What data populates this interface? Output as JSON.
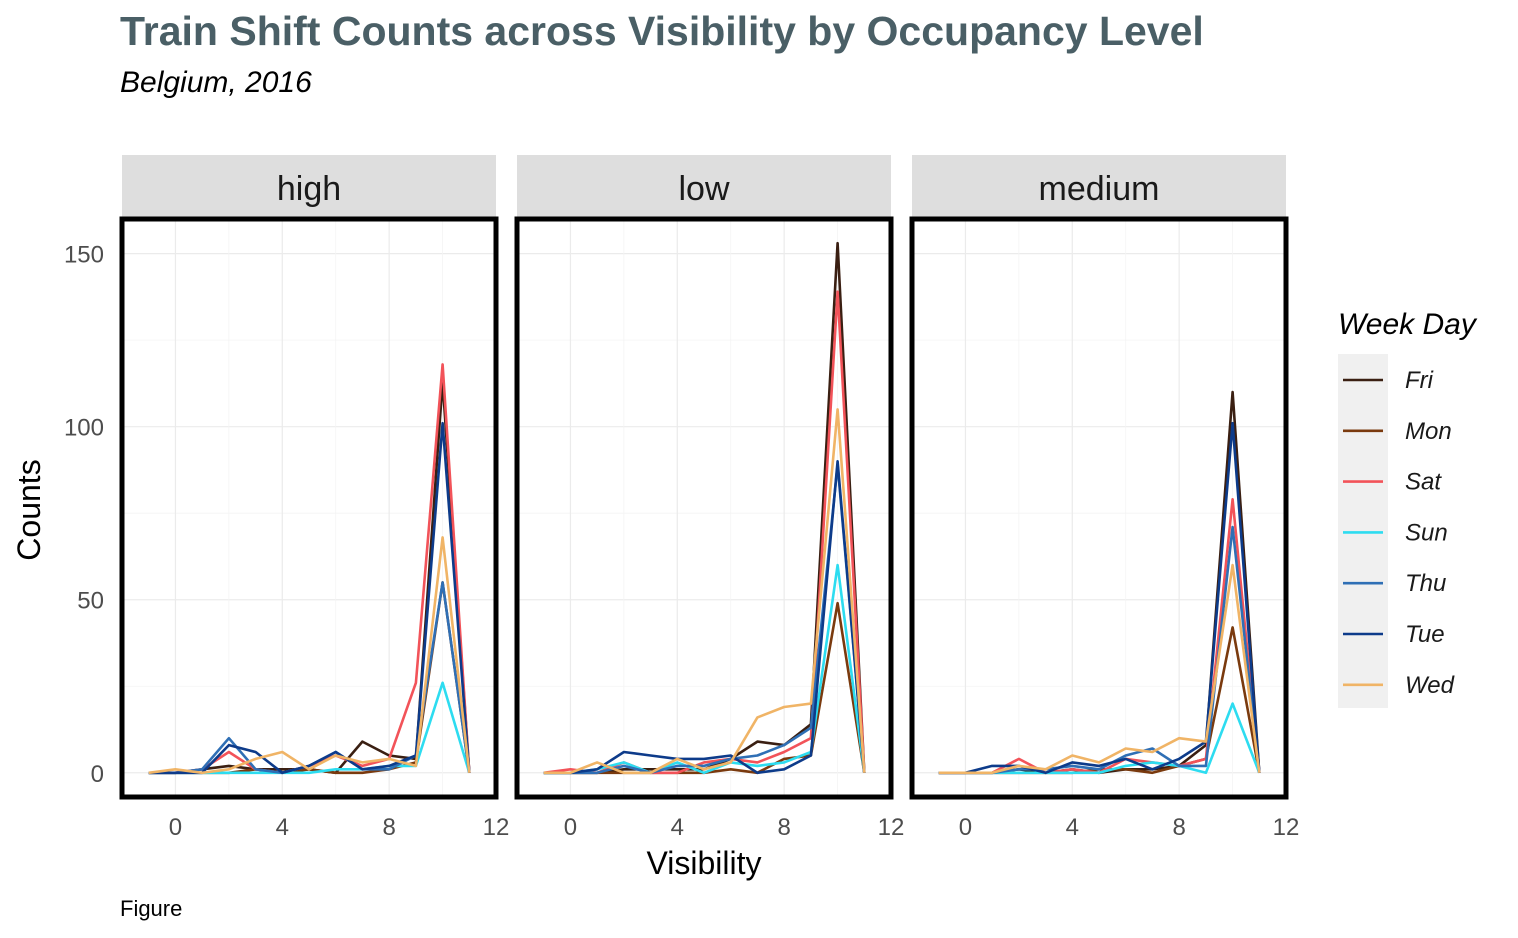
{
  "title": "Train Shift Counts across Visibility by Occupancy Level",
  "subtitle": "Belgium, 2016",
  "caption": "Figure",
  "chart_data": {
    "type": "line",
    "title": "Train Shift Counts across Visibility by Occupancy Level",
    "subtitle": "Belgium, 2016",
    "xlabel": "Visibility",
    "ylabel": "Counts",
    "xlim": [
      -2,
      12
    ],
    "ylim": [
      -7,
      160
    ],
    "x_ticks": [
      0,
      4,
      8,
      12
    ],
    "y_ticks": [
      0,
      50,
      100,
      150
    ],
    "grid": true,
    "legend": {
      "title": "Week Day",
      "position": "right"
    },
    "x": [
      -1,
      0,
      1,
      2,
      3,
      4,
      5,
      6,
      7,
      8,
      9,
      10,
      11
    ],
    "colors": {
      "Fri": "#3a1f12",
      "Mon": "#7a3a0e",
      "Sat": "#f25359",
      "Sun": "#2ddcf0",
      "Thu": "#2f6fb5",
      "Tue": "#0d3b8a",
      "Wed": "#f0b466"
    },
    "panels": [
      {
        "label": "high",
        "series": [
          {
            "name": "Fri",
            "values": [
              0,
              0,
              1,
              2,
              1,
              1,
              1,
              0,
              9,
              5,
              4,
              113,
              0
            ]
          },
          {
            "name": "Mon",
            "values": [
              0,
              0,
              0,
              0,
              1,
              0,
              1,
              0,
              0,
              1,
              3,
              55,
              0
            ]
          },
          {
            "name": "Sat",
            "values": [
              0,
              0,
              1,
              6,
              1,
              0,
              2,
              5,
              2,
              4,
              26,
              118,
              0
            ]
          },
          {
            "name": "Sun",
            "values": [
              0,
              0,
              0,
              0,
              0,
              0,
              0,
              1,
              1,
              2,
              2,
              26,
              0
            ]
          },
          {
            "name": "Thu",
            "values": [
              0,
              0,
              1,
              10,
              1,
              0,
              2,
              6,
              1,
              1,
              5,
              55,
              0
            ]
          },
          {
            "name": "Tue",
            "values": [
              0,
              0,
              0,
              8,
              6,
              0,
              2,
              6,
              1,
              2,
              5,
              101,
              0
            ]
          },
          {
            "name": "Wed",
            "values": [
              0,
              1,
              0,
              1,
              4,
              6,
              1,
              5,
              3,
              4,
              2,
              68,
              0
            ]
          }
        ]
      },
      {
        "label": "low",
        "series": [
          {
            "name": "Fri",
            "values": [
              0,
              0,
              0,
              1,
              1,
              1,
              1,
              4,
              9,
              8,
              14,
              153,
              0
            ]
          },
          {
            "name": "Mon",
            "values": [
              0,
              0,
              0,
              0,
              0,
              0,
              0,
              1,
              0,
              4,
              5,
              49,
              0
            ]
          },
          {
            "name": "Sat",
            "values": [
              0,
              1,
              0,
              3,
              0,
              0,
              3,
              4,
              3,
              6,
              10,
              139,
              0
            ]
          },
          {
            "name": "Sun",
            "values": [
              0,
              0,
              1,
              3,
              0,
              3,
              0,
              3,
              2,
              3,
              6,
              60,
              0
            ]
          },
          {
            "name": "Thu",
            "values": [
              0,
              0,
              0,
              2,
              0,
              2,
              2,
              4,
              5,
              8,
              13,
              89,
              0
            ]
          },
          {
            "name": "Tue",
            "values": [
              0,
              0,
              1,
              6,
              5,
              4,
              4,
              5,
              0,
              1,
              5,
              90,
              0
            ]
          },
          {
            "name": "Wed",
            "values": [
              0,
              0,
              3,
              0,
              0,
              4,
              1,
              3,
              16,
              19,
              20,
              105,
              0
            ]
          }
        ]
      },
      {
        "label": "medium",
        "series": [
          {
            "name": "Fri",
            "values": [
              0,
              0,
              0,
              1,
              0,
              1,
              0,
              1,
              1,
              2,
              8,
              110,
              0
            ]
          },
          {
            "name": "Mon",
            "values": [
              0,
              0,
              0,
              0,
              0,
              0,
              1,
              1,
              0,
              2,
              4,
              42,
              0
            ]
          },
          {
            "name": "Sat",
            "values": [
              0,
              0,
              0,
              4,
              0,
              1,
              0,
              4,
              3,
              2,
              4,
              79,
              0
            ]
          },
          {
            "name": "Sun",
            "values": [
              0,
              0,
              0,
              0,
              0,
              0,
              0,
              2,
              3,
              2,
              0,
              20,
              0
            ]
          },
          {
            "name": "Thu",
            "values": [
              0,
              0,
              0,
              1,
              1,
              2,
              1,
              5,
              7,
              2,
              2,
              71,
              0
            ]
          },
          {
            "name": "Tue",
            "values": [
              0,
              0,
              2,
              2,
              0,
              3,
              2,
              4,
              1,
              4,
              9,
              101,
              0
            ]
          },
          {
            "name": "Wed",
            "values": [
              0,
              0,
              0,
              2,
              1,
              5,
              3,
              7,
              6,
              10,
              9,
              60,
              0
            ]
          }
        ]
      }
    ]
  }
}
